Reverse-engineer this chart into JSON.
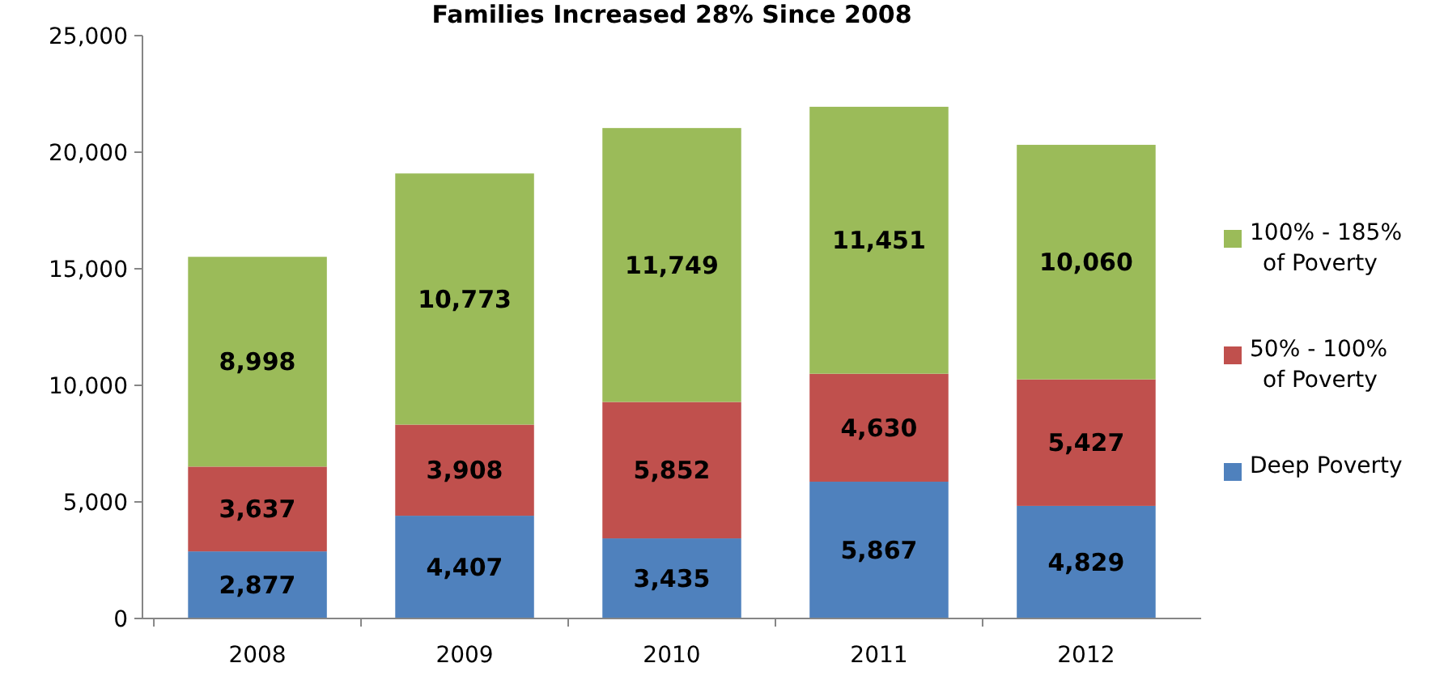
{
  "chart_data": {
    "type": "bar",
    "stacked": true,
    "title": "Families Increased 28% Since 2008",
    "categories": [
      "2008",
      "2009",
      "2010",
      "2011",
      "2012"
    ],
    "series": [
      {
        "name": "Deep Poverty",
        "color": "#4f81bd",
        "values": [
          2877,
          4407,
          3435,
          5867,
          4829
        ],
        "value_labels": [
          "2,877",
          "4,407",
          "3,435",
          "5,867",
          "4,829"
        ]
      },
      {
        "name": "50% - 100% of Poverty",
        "color": "#c0504d",
        "values": [
          3637,
          3908,
          5852,
          4630,
          5427
        ],
        "value_labels": [
          "3,637",
          "3,908",
          "5,852",
          "4,630",
          "5,427"
        ]
      },
      {
        "name": "100% - 185% of Poverty",
        "color": "#9bbb59",
        "values": [
          8998,
          10773,
          11749,
          11451,
          10060
        ],
        "value_labels": [
          "8,998",
          "10,773",
          "11,749",
          "11,451",
          "10,060"
        ]
      }
    ],
    "ylim": [
      0,
      25000
    ],
    "yticks": [
      {
        "value": 0,
        "label": "0"
      },
      {
        "value": 5000,
        "label": "5,000"
      },
      {
        "value": 10000,
        "label": "10,000"
      },
      {
        "value": 15000,
        "label": "15,000"
      },
      {
        "value": 20000,
        "label": "20,000"
      },
      {
        "value": 25000,
        "label": "25,000"
      }
    ],
    "legend": "right",
    "grid": false
  }
}
